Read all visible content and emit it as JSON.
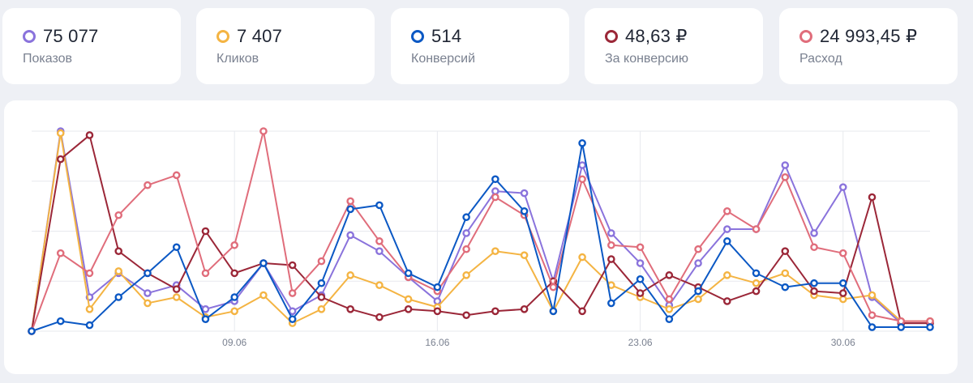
{
  "colors": {
    "impressions": "#8a73dc",
    "clicks": "#f4b443",
    "conversions": "#0b58c4",
    "cost_per_conversion": "#9b2738",
    "spend": "#e06d7b"
  },
  "cards": [
    {
      "key": "impressions",
      "value": "75 077",
      "label": "Показов"
    },
    {
      "key": "clicks",
      "value": "7 407",
      "label": "Кликов"
    },
    {
      "key": "conversions",
      "value": "514",
      "label": "Конверсий"
    },
    {
      "key": "cost_per_conversion",
      "value": "48,63 ₽",
      "label": "За конверсию"
    },
    {
      "key": "spend",
      "value": "24 993,45 ₽",
      "label": "Расход"
    }
  ],
  "chart_data": {
    "type": "line",
    "x": [
      1,
      2,
      3,
      4,
      5,
      6,
      7,
      8,
      9,
      10,
      11,
      12,
      13,
      14,
      15,
      16,
      17,
      18,
      19,
      20,
      21,
      22,
      23,
      24,
      25,
      26,
      27,
      28,
      29,
      30,
      31,
      32
    ],
    "x_ticks": [
      {
        "x": 8,
        "label": "09.06"
      },
      {
        "x": 15,
        "label": "16.06"
      },
      {
        "x": 22,
        "label": "23.06"
      },
      {
        "x": 29,
        "label": "30.06"
      }
    ],
    "ylim": [
      0,
      100
    ],
    "grid": true,
    "series": [
      {
        "key": "impressions",
        "name": "Показов",
        "values": [
          0,
          100,
          17,
          29,
          19,
          23,
          11,
          15,
          34,
          10,
          18,
          48,
          40,
          27,
          15,
          49,
          70,
          69,
          25,
          83,
          49,
          34,
          13,
          34,
          51,
          51,
          83,
          49,
          72,
          17,
          4,
          4
        ]
      },
      {
        "key": "clicks",
        "name": "Кликов",
        "values": [
          0,
          99,
          11,
          30,
          14,
          17,
          7,
          10,
          18,
          4,
          11,
          28,
          23,
          16,
          12,
          28,
          40,
          38,
          10,
          37,
          23,
          17,
          11,
          16,
          28,
          24,
          29,
          18,
          16,
          18,
          5,
          5
        ]
      },
      {
        "key": "cost_per_conversion",
        "name": "За конверсию",
        "values": [
          0,
          86,
          98,
          40,
          29,
          21,
          50,
          29,
          34,
          33,
          17,
          11,
          7,
          11,
          10,
          8,
          10,
          11,
          25,
          10,
          36,
          19,
          28,
          22,
          15,
          20,
          40,
          20,
          19,
          67,
          4,
          4
        ]
      },
      {
        "key": "spend",
        "name": "Расход",
        "values": [
          0,
          39,
          29,
          58,
          73,
          78,
          29,
          43,
          100,
          19,
          35,
          65,
          45,
          27,
          20,
          41,
          67,
          58,
          22,
          76,
          43,
          42,
          16,
          41,
          60,
          51,
          77,
          42,
          39,
          8,
          5,
          5
        ]
      },
      {
        "key": "conversions",
        "name": "Конверсий",
        "values": [
          0,
          5,
          3,
          17,
          29,
          42,
          6,
          17,
          34,
          6,
          24,
          61,
          63,
          29,
          22,
          57,
          76,
          60,
          10,
          94,
          14,
          26,
          6,
          20,
          45,
          29,
          22,
          24,
          24,
          2,
          2,
          2
        ]
      }
    ]
  }
}
